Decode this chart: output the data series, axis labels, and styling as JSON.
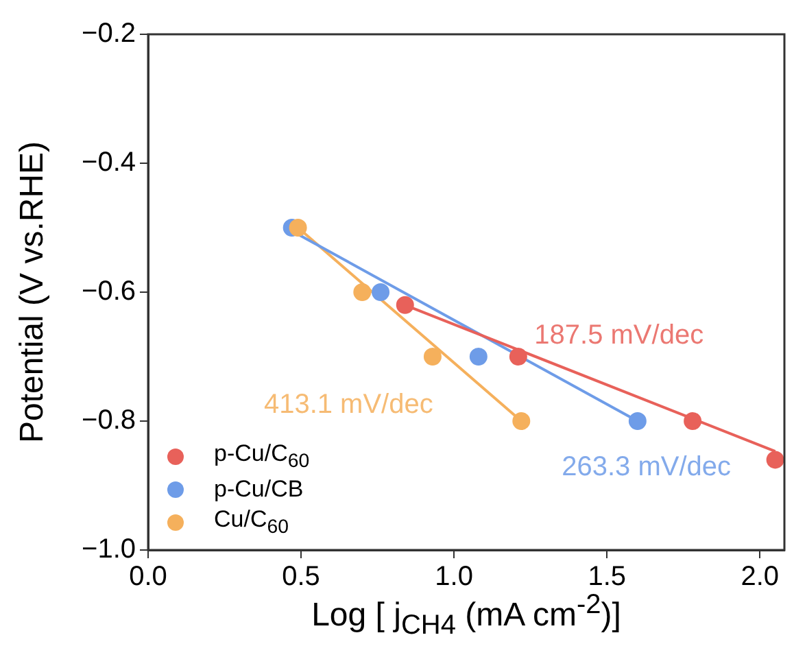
{
  "chart_data": {
    "type": "scatter",
    "xlabel": "Log [ j$_{CH4}$ (mA cm$^{-2}$)]",
    "ylabel": "Potential (V vs.RHE)",
    "xlim": [
      0,
      2.08
    ],
    "xticks": [
      {
        "value": 0,
        "label": "0.0"
      },
      0.5,
      {
        "value": 1,
        "label": "1.0"
      },
      1.5,
      {
        "value": 2,
        "label": "2.0"
      }
    ],
    "ylim": [
      -1.0,
      -0.2
    ],
    "yticks": [
      {
        "value": -1.0,
        "label": "−1.0"
      },
      {
        "value": -0.8,
        "label": "−0.8"
      },
      {
        "value": -0.6,
        "label": "−0.6"
      },
      {
        "value": -0.4,
        "label": "−0.4"
      },
      {
        "value": -0.2,
        "label": "−0.2"
      }
    ],
    "grid": false,
    "legend": "bottom left",
    "marker": "circle",
    "series": [
      {
        "name": "p-Cu/C$_{60}$",
        "color": "#e8615a",
        "x": [
          0.84,
          1.21,
          1.78,
          2.05
        ],
        "values": [
          -0.62,
          -0.7,
          -0.8,
          -0.86
        ]
      },
      {
        "name": "p-Cu/CB",
        "color": "#6e9ce8",
        "x": [
          0.47,
          0.76,
          1.08,
          1.6
        ],
        "values": [
          -0.5,
          -0.6,
          -0.7,
          -0.8
        ]
      },
      {
        "name": "Cu/C$_{60}$",
        "color": "#f5b05c",
        "x": [
          0.49,
          0.7,
          0.93,
          1.22
        ],
        "values": [
          -0.5,
          -0.6,
          -0.7,
          -0.8
        ]
      },
      {
        "type": "line",
        "marker": "none",
        "color": "#e8615a",
        "x": [
          0.84,
          2.05
        ],
        "values": [
          -0.62,
          -0.847
        ]
      },
      {
        "type": "line",
        "marker": "none",
        "color": "#6e9ce8",
        "x": [
          0.47,
          1.6
        ],
        "values": [
          -0.505,
          -0.8
        ]
      },
      {
        "type": "line",
        "marker": "none",
        "color": "#f5b05c",
        "x": [
          0.49,
          1.22
        ],
        "values": [
          -0.5,
          -0.8
        ]
      }
    ],
    "annotations": [
      "187.5 mV/dec",
      "263.3 mV/dec",
      "413.1 mV/dec"
    ]
  }
}
